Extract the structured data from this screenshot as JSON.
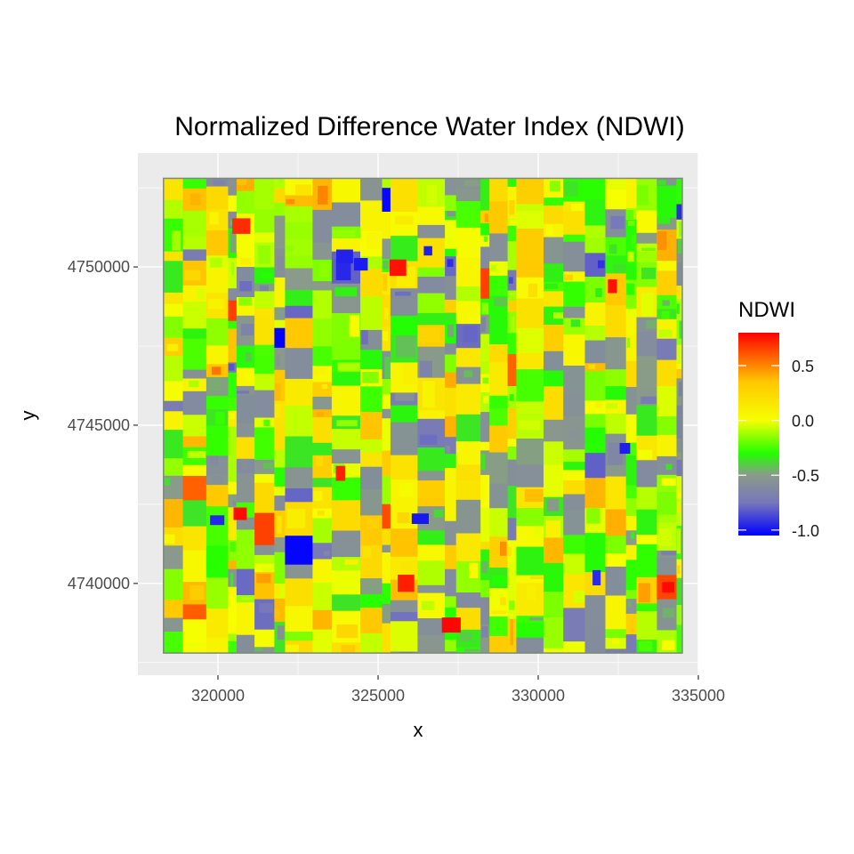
{
  "chart_data": {
    "type": "heatmap",
    "title": "Normalized Difference Water Index (NDWI)",
    "xlabel": "x",
    "ylabel": "y",
    "xlim": [
      317500,
      335000
    ],
    "ylim": [
      4737100,
      4753600
    ],
    "extent": {
      "xmin": 318300,
      "xmax": 334500,
      "ymin": 4737800,
      "ymax": 4752800
    },
    "x_ticks": [
      320000,
      325000,
      330000,
      335000
    ],
    "x_tick_labels": [
      "320000",
      "325000",
      "330000",
      "335000"
    ],
    "y_ticks": [
      4740000,
      4745000,
      4750000
    ],
    "y_tick_labels": [
      "4740000",
      "4745000",
      "4750000"
    ],
    "grid": true,
    "legend": {
      "title": "NDWI",
      "position": "right",
      "range": [
        -1.05,
        0.8
      ],
      "ticks": [
        0.5,
        0.0,
        -0.5,
        -1.0
      ],
      "tick_labels": [
        "0.5",
        "0.0",
        "-0.5",
        "-1.0"
      ],
      "color_stops": [
        {
          "value": -1.05,
          "color": "#0000ff"
        },
        {
          "value": -0.75,
          "color": "#7777bb"
        },
        {
          "value": -0.5,
          "color": "#8a9a8a"
        },
        {
          "value": -0.3,
          "color": "#22ff00"
        },
        {
          "value": 0.0,
          "color": "#f6ff00"
        },
        {
          "value": 0.35,
          "color": "#ffc800"
        },
        {
          "value": 0.8,
          "color": "#ff0000"
        }
      ]
    },
    "value_distribution_weights": [
      {
        "value": -1.0,
        "weight": 0.4
      },
      {
        "value": -0.75,
        "weight": 4
      },
      {
        "value": -0.55,
        "weight": 16
      },
      {
        "value": -0.3,
        "weight": 22
      },
      {
        "value": -0.12,
        "weight": 18
      },
      {
        "value": 0.02,
        "weight": 20
      },
      {
        "value": 0.18,
        "weight": 10
      },
      {
        "value": 0.35,
        "weight": 8
      },
      {
        "value": 0.6,
        "weight": 1.2
      }
    ]
  }
}
